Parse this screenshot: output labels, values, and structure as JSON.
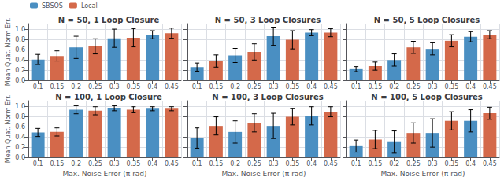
{
  "chart_data": [
    {
      "type": "bar",
      "title": "N = 50, 1 Loop Closure",
      "ylabel": "Mean Quat. Norm Err.",
      "categories": [
        "0.1",
        "0.15",
        "0.2",
        "0.25",
        "0.3",
        "0.35",
        "0.4",
        "0.45"
      ],
      "series": [
        {
          "name": "SBSOS",
          "color": "#4A8FC2",
          "values": [
            0.41,
            null,
            0.65,
            null,
            0.83,
            null,
            0.9,
            null
          ],
          "errors": [
            0.1,
            null,
            0.22,
            null,
            0.18,
            null,
            0.08,
            null
          ]
        },
        {
          "name": "Local",
          "color": "#D4694A",
          "values": [
            null,
            0.48,
            null,
            0.67,
            null,
            0.84,
            null,
            0.93
          ],
          "errors": [
            null,
            0.1,
            null,
            0.15,
            null,
            0.18,
            null,
            0.1
          ]
        }
      ],
      "ylim": [
        0.0,
        1.12
      ],
      "yticks": [
        {
          "value": 0,
          "label": "0.0"
        },
        0.2,
        0.4,
        0.6,
        0.8,
        {
          "value": 1,
          "label": "1.0"
        }
      ],
      "grid": true,
      "legend": "upper left"
    },
    {
      "type": "bar",
      "title": "N = 50, 3 Loop Closures",
      "categories": [
        "0.1",
        "0.15",
        "0.2",
        "0.25",
        "0.3",
        "0.35",
        "0.4",
        "0.45"
      ],
      "series": [
        {
          "name": "SBSOS",
          "color": "#4A8FC2",
          "values": [
            0.26,
            null,
            0.49,
            null,
            0.87,
            null,
            0.94,
            null
          ],
          "errors": [
            0.08,
            null,
            0.14,
            null,
            0.18,
            null,
            0.06,
            null
          ]
        },
        {
          "name": "Local",
          "color": "#D4694A",
          "values": [
            null,
            0.38,
            null,
            0.56,
            null,
            0.8,
            null,
            0.94
          ],
          "errors": [
            null,
            0.12,
            null,
            0.16,
            null,
            0.18,
            null,
            0.08
          ]
        }
      ],
      "ylim": [
        0.0,
        1.12
      ],
      "yticks": [
        {
          "value": 0,
          "label": "0.0"
        },
        0.2,
        0.4,
        0.6,
        0.8,
        {
          "value": 1,
          "label": "1.0"
        }
      ],
      "grid": true,
      "tick_labels": "x"
    },
    {
      "type": "bar",
      "title": "N = 50, 5 Loop Closures",
      "categories": [
        "0.1",
        "0.15",
        "0.2",
        "0.25",
        "0.3",
        "0.35",
        "0.4",
        "0.45"
      ],
      "series": [
        {
          "name": "SBSOS",
          "color": "#4A8FC2",
          "values": [
            0.22,
            null,
            0.4,
            null,
            0.62,
            null,
            0.86,
            null
          ],
          "errors": [
            0.05,
            null,
            0.12,
            null,
            0.12,
            null,
            0.1,
            null
          ]
        },
        {
          "name": "Local",
          "color": "#D4694A",
          "values": [
            null,
            0.28,
            null,
            0.65,
            null,
            0.78,
            null,
            0.9
          ],
          "errors": [
            null,
            0.08,
            null,
            0.12,
            null,
            0.12,
            null,
            0.08
          ]
        }
      ],
      "ylim": [
        0.0,
        1.12
      ],
      "yticks": [
        {
          "value": 0,
          "label": "0.0"
        },
        0.2,
        0.4,
        0.6,
        0.8,
        {
          "value": 1,
          "label": "1.0"
        }
      ],
      "grid": true,
      "tick_labels": "x"
    },
    {
      "type": "bar",
      "title": "N = 100, 1 Loop Closure",
      "ylabel": "Mean Quat. Norm Err.",
      "xlabel": "Max. Noise Error (π rad)",
      "categories": [
        "0.1",
        "0.15",
        "0.2",
        "0.25",
        "0.3",
        "0.35",
        "0.4",
        "0.45"
      ],
      "series": [
        {
          "name": "SBSOS",
          "color": "#4A8FC2",
          "values": [
            0.49,
            null,
            0.94,
            null,
            0.97,
            null,
            0.96,
            null
          ],
          "errors": [
            0.08,
            null,
            0.08,
            null,
            0.05,
            null,
            0.04,
            null
          ]
        },
        {
          "name": "Local",
          "color": "#D4694A",
          "values": [
            null,
            0.5,
            null,
            0.92,
            null,
            0.94,
            null,
            0.96
          ],
          "errors": [
            null,
            0.08,
            null,
            0.08,
            null,
            0.06,
            null,
            0.04
          ]
        }
      ],
      "ylim": [
        0.0,
        1.12
      ],
      "yticks": [
        {
          "value": 0,
          "label": "0.0"
        },
        0.2,
        0.4,
        0.6,
        0.8,
        {
          "value": 1,
          "label": "1.0"
        }
      ],
      "grid": true
    },
    {
      "type": "bar",
      "title": "N = 100, 3 Loop Closures",
      "xlabel": "Max. Noise Error (π rad)",
      "categories": [
        "0.1",
        "0.15",
        "0.2",
        "0.25",
        "0.3",
        "0.35",
        "0.4",
        "0.45"
      ],
      "series": [
        {
          "name": "SBSOS",
          "color": "#4A8FC2",
          "values": [
            0.38,
            null,
            0.5,
            null,
            0.62,
            null,
            0.82,
            null
          ],
          "errors": [
            0.2,
            null,
            0.22,
            null,
            0.25,
            null,
            0.18,
            null
          ]
        },
        {
          "name": "Local",
          "color": "#D4694A",
          "values": [
            null,
            0.62,
            null,
            0.68,
            null,
            0.8,
            null,
            0.9
          ],
          "errors": [
            null,
            0.18,
            null,
            0.18,
            null,
            0.16,
            null,
            0.1
          ]
        }
      ],
      "ylim": [
        0.0,
        1.12
      ],
      "yticks": [
        {
          "value": 0,
          "label": "0.0"
        },
        0.2,
        0.4,
        0.6,
        0.8,
        {
          "value": 1,
          "label": "1.0"
        }
      ],
      "grid": true,
      "tick_labels": "x"
    },
    {
      "type": "bar",
      "title": "N = 100, 5 Loop Closures",
      "xlabel": "Max. Noise Error (π rad)",
      "categories": [
        "0.1",
        "0.15",
        "0.2",
        "0.25",
        "0.3",
        "0.35",
        "0.4",
        "0.45"
      ],
      "series": [
        {
          "name": "SBSOS",
          "color": "#4A8FC2",
          "values": [
            0.22,
            null,
            0.3,
            null,
            0.48,
            null,
            0.72,
            null
          ],
          "errors": [
            0.12,
            null,
            0.22,
            null,
            0.28,
            null,
            0.22,
            null
          ]
        },
        {
          "name": "Local",
          "color": "#D4694A",
          "values": [
            null,
            0.35,
            null,
            0.48,
            null,
            0.72,
            null,
            0.87
          ],
          "errors": [
            null,
            0.18,
            null,
            0.2,
            null,
            0.18,
            null,
            0.12
          ]
        }
      ],
      "ylim": [
        0.0,
        1.12
      ],
      "yticks": [
        {
          "value": 0,
          "label": "0.0"
        },
        0.2,
        0.4,
        0.6,
        0.8,
        {
          "value": 1,
          "label": "1.0"
        }
      ],
      "grid": true,
      "tick_labels": "x"
    }
  ]
}
